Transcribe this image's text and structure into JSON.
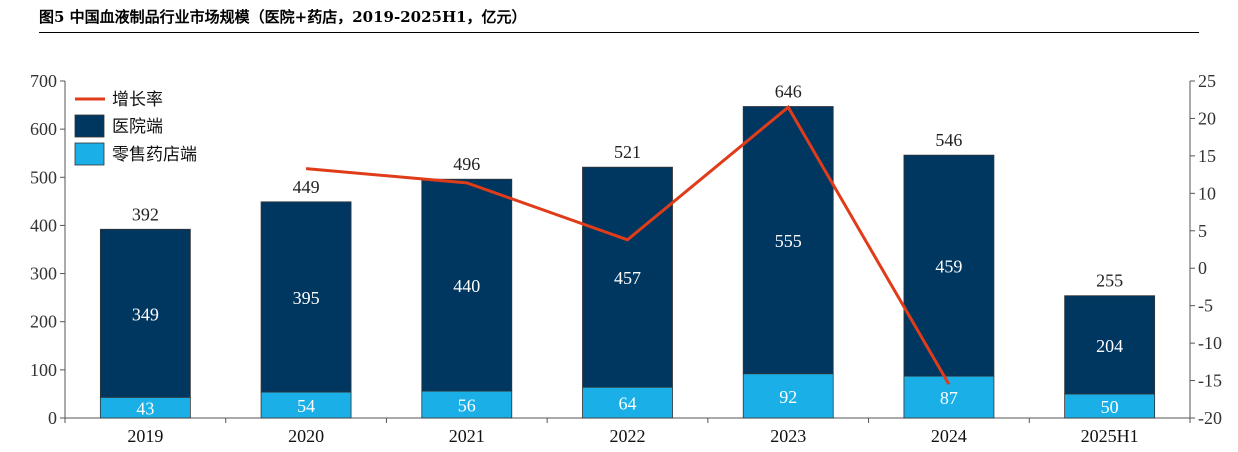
{
  "chart_data": {
    "type": "bar",
    "title": "图5 中国血液制品行业市场规模（医院+药店，2019-2025H1，亿元）",
    "categories": [
      "2019",
      "2020",
      "2021",
      "2022",
      "2023",
      "2024",
      "2025H1"
    ],
    "series": [
      {
        "name": "零售药店端",
        "type": "bar",
        "stack": "total",
        "color": "#1AAFE6",
        "values": [
          43,
          54,
          56,
          64,
          92,
          87,
          50
        ]
      },
      {
        "name": "医院端",
        "type": "bar",
        "stack": "total",
        "color": "#003761",
        "values": [
          349,
          395,
          440,
          457,
          555,
          459,
          204
        ]
      },
      {
        "name": "增长率",
        "type": "line",
        "axis": "right",
        "color": "#E03C1A",
        "values": [
          null,
          13.3,
          11.4,
          3.8,
          21.5,
          -15.5,
          null
        ]
      }
    ],
    "totals": [
      392,
      449,
      496,
      521,
      646,
      546,
      255
    ],
    "ylim": [
      0,
      700
    ],
    "yticks": [
      "0",
      "100",
      "200",
      "300",
      "400",
      "500",
      "600",
      "700"
    ],
    "y2lim": [
      -20,
      25
    ],
    "y2ticks": [
      "-20",
      "-15",
      "-10",
      "-5",
      "0",
      "5",
      "10",
      "15",
      "20",
      "25"
    ],
    "legend_position": "top-left",
    "grid": false
  }
}
